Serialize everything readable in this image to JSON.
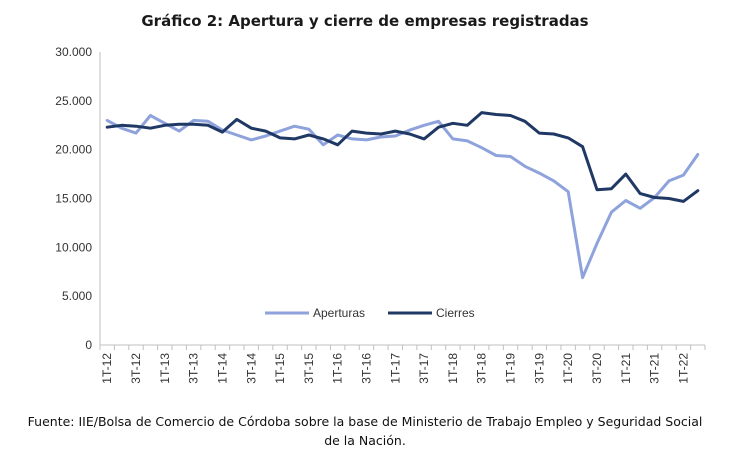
{
  "title": "Gráfico 2: Apertura y cierre de empresas registradas",
  "source": "Fuente: IIE/Bolsa de Comercio de Córdoba sobre la base de Ministerio de Trabajo Empleo y Seguridad Social de la Nación.",
  "chart_data": {
    "type": "line",
    "title": "Gráfico 2: Apertura y cierre de empresas registradas",
    "xlabel": "",
    "ylabel": "",
    "ylim": [
      0,
      30000
    ],
    "y_ticks": [
      "0",
      "5.000",
      "10.000",
      "15.000",
      "20.000",
      "25.000",
      "30.000"
    ],
    "grid": false,
    "legend_position": "bottom",
    "x_tick_labels": [
      "1T-12",
      "3T-12",
      "1T-13",
      "3T-13",
      "1T-14",
      "3T-14",
      "1T-15",
      "3T-15",
      "1T-16",
      "3T-16",
      "1T-17",
      "3T-17",
      "1T-18",
      "3T-18",
      "1T-19",
      "3T-19",
      "1T-20",
      "3T-20",
      "1T-21",
      "3T-21",
      "1T-22"
    ],
    "categories": [
      "1T-12",
      "2T-12",
      "3T-12",
      "4T-12",
      "1T-13",
      "2T-13",
      "3T-13",
      "4T-13",
      "1T-14",
      "2T-14",
      "3T-14",
      "4T-14",
      "1T-15",
      "2T-15",
      "3T-15",
      "4T-15",
      "1T-16",
      "2T-16",
      "3T-16",
      "4T-16",
      "1T-17",
      "2T-17",
      "3T-17",
      "4T-17",
      "1T-18",
      "2T-18",
      "3T-18",
      "4T-18",
      "1T-19",
      "2T-19",
      "3T-19",
      "4T-19",
      "1T-20",
      "2T-20",
      "3T-20",
      "4T-20",
      "1T-21",
      "2T-21",
      "3T-21",
      "4T-21",
      "1T-22",
      "2T-22"
    ],
    "series": [
      {
        "name": "Aperturas",
        "color": "#8ea2dc",
        "values": [
          23000,
          22200,
          21700,
          23500,
          22700,
          21900,
          23000,
          22900,
          22000,
          21500,
          21000,
          21400,
          21900,
          22400,
          22100,
          20500,
          21500,
          21100,
          21000,
          21300,
          21400,
          22000,
          22500,
          22900,
          21100,
          20900,
          20200,
          19400,
          19300,
          18300,
          17600,
          16800,
          15700,
          6900,
          10400,
          13600,
          14800,
          14000,
          15100,
          16800,
          17400,
          19500
        ]
      },
      {
        "name": "Cierres",
        "color": "#1f3864",
        "values": [
          22300,
          22500,
          22400,
          22200,
          22500,
          22600,
          22600,
          22500,
          21800,
          23100,
          22200,
          21900,
          21200,
          21100,
          21500,
          21100,
          20500,
          21900,
          21700,
          21600,
          21900,
          21600,
          21100,
          22300,
          22700,
          22500,
          23800,
          23600,
          23500,
          22900,
          21700,
          21600,
          21200,
          20300,
          15900,
          16000,
          17500,
          15500,
          15100,
          15000,
          14700,
          15800
        ]
      }
    ]
  }
}
